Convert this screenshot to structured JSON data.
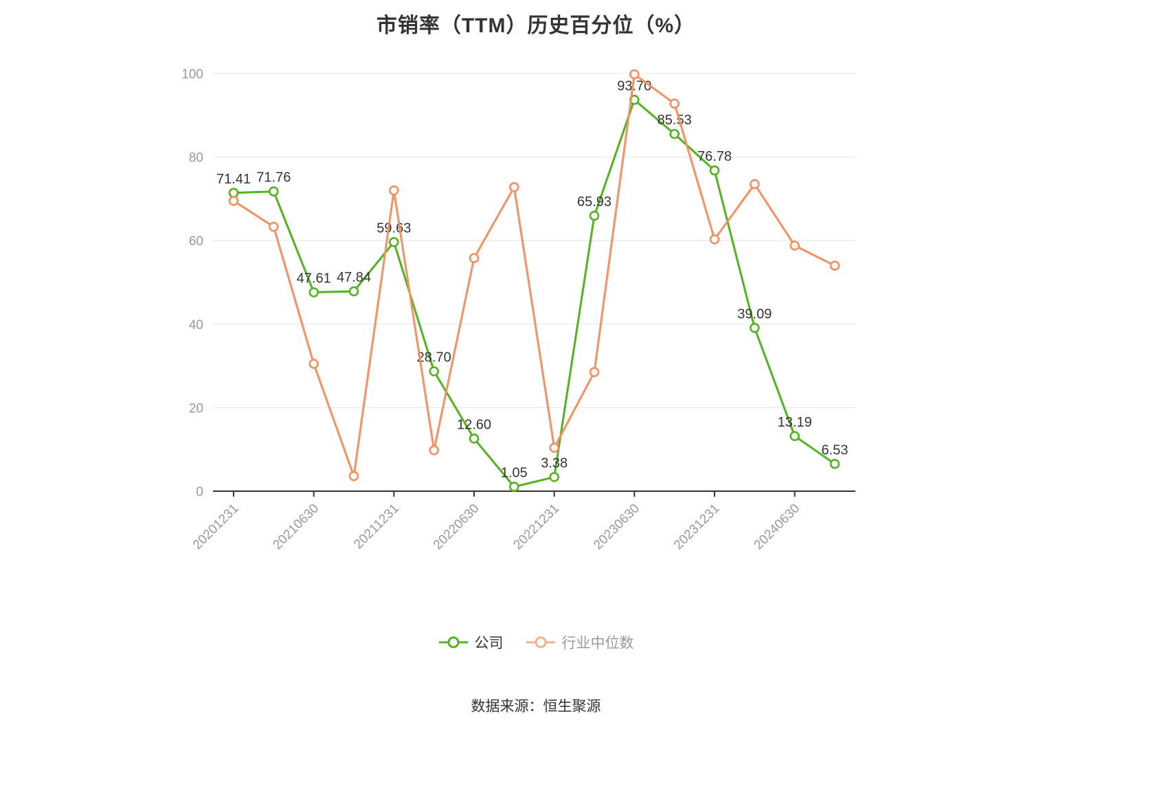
{
  "title": "市销率（TTM）历史百分位（%）",
  "source": "数据来源：恒生聚源",
  "legend": {
    "company_label": "公司",
    "industry_label": "行业中位数"
  },
  "chart_data": {
    "type": "line",
    "title": "市销率（TTM）历史百分位（%）",
    "x_tick_labels": [
      "20201231",
      "20210630",
      "20211231",
      "20220630",
      "20221231",
      "20230630",
      "20231231",
      "20240630"
    ],
    "x_tick_indices": [
      0,
      2,
      4,
      6,
      8,
      10,
      12,
      14
    ],
    "n_points": 16,
    "ylim": [
      0,
      100
    ],
    "yticks": [
      0,
      20,
      40,
      60,
      80,
      100
    ],
    "grid_on": true,
    "legend_position": "bottom",
    "series": [
      {
        "id": "company",
        "name": "公司",
        "color": "#50b41c",
        "show_labels": true,
        "values": [
          71.41,
          71.76,
          47.61,
          47.84,
          59.63,
          28.7,
          12.6,
          1.05,
          3.38,
          65.93,
          93.7,
          85.53,
          76.78,
          39.09,
          13.19,
          6.53
        ]
      },
      {
        "id": "industry",
        "name": "行业中位数",
        "color": "#f98f5f",
        "legend_color": "#fbb08a",
        "show_labels": false,
        "values": [
          69.5,
          63.3,
          30.5,
          3.6,
          72.0,
          9.8,
          55.8,
          72.8,
          10.4,
          28.5,
          99.8,
          92.8,
          60.3,
          73.5,
          58.8,
          54.0
        ]
      }
    ],
    "grid_color": "#e4e4ea",
    "axis_color": "#333333",
    "axis_text_color": "#999999",
    "label_color": "#333333"
  }
}
